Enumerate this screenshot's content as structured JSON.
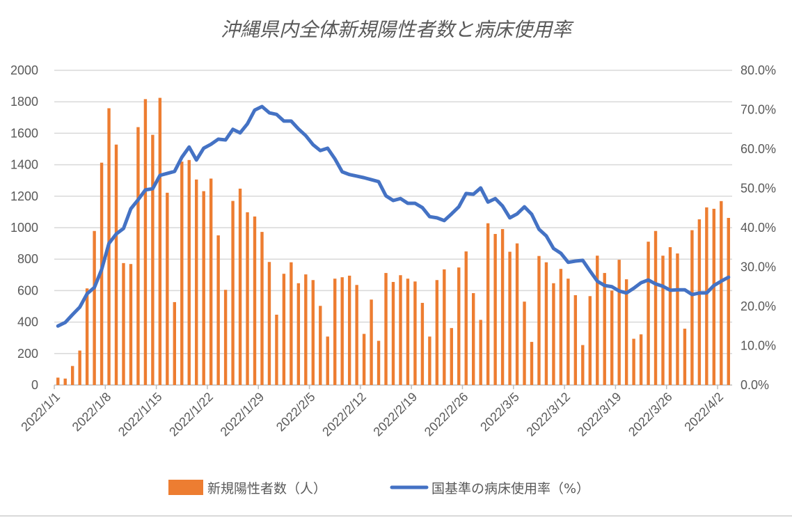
{
  "chart_data": {
    "type": "bar+line",
    "title": "沖縄県内全体新規陽性者数と病床使用率",
    "start_date": "2022/1/1",
    "x_tick_labels": [
      "2022/1/1",
      "2022/1/8",
      "2022/1/15",
      "2022/1/22",
      "2022/1/29",
      "2022/2/5",
      "2022/2/12",
      "2022/2/19",
      "2022/2/26",
      "2022/3/5",
      "2022/3/12",
      "2022/3/19",
      "2022/3/26",
      "2022/4/2"
    ],
    "x_tick_every_days": 7,
    "y_left": {
      "range": [
        0,
        2000
      ],
      "step": 200,
      "tick_labels": [
        "0",
        "200",
        "400",
        "600",
        "800",
        "1000",
        "1200",
        "1400",
        "1600",
        "1800",
        "2000"
      ]
    },
    "y_right": {
      "range": [
        0,
        80
      ],
      "step": 10,
      "tick_labels": [
        "0.0%",
        "10.0%",
        "20.0%",
        "30.0%",
        "40.0%",
        "50.0%",
        "60.0%",
        "70.0%",
        "80.0%"
      ]
    },
    "grid": true,
    "legend_position": "bottom",
    "series": [
      {
        "name": "新規陽性者数（人）",
        "type": "bar",
        "axis": "left",
        "color": "#ED7D31",
        "values": [
          47,
          41,
          121,
          219,
          614,
          979,
          1413,
          1759,
          1528,
          775,
          769,
          1639,
          1817,
          1590,
          1825,
          1222,
          527,
          1420,
          1430,
          1306,
          1232,
          1312,
          951,
          605,
          1170,
          1248,
          1098,
          1071,
          973,
          782,
          447,
          707,
          780,
          647,
          703,
          667,
          503,
          308,
          676,
          685,
          695,
          636,
          325,
          543,
          281,
          712,
          655,
          698,
          676,
          658,
          522,
          308,
          667,
          735,
          362,
          747,
          849,
          584,
          414,
          1028,
          960,
          991,
          847,
          900,
          530,
          274,
          820,
          780,
          647,
          738,
          676,
          571,
          254,
          565,
          822,
          712,
          600,
          796,
          672,
          294,
          322,
          911,
          979,
          822,
          876,
          836,
          358,
          984,
          1053,
          1129,
          1120,
          1169,
          1062
        ]
      },
      {
        "name": "国基準の病床使用率（%）",
        "type": "line",
        "axis": "right",
        "color": "#4472C4",
        "values": [
          15.0,
          15.9,
          17.9,
          19.8,
          23.2,
          24.8,
          29.4,
          36.0,
          38.4,
          39.8,
          44.8,
          47.1,
          49.6,
          49.9,
          53.3,
          53.8,
          54.3,
          57.9,
          60.5,
          57.2,
          60.2,
          61.2,
          62.5,
          62.3,
          65.0,
          64.1,
          66.4,
          69.9,
          70.8,
          69.2,
          68.8,
          67.1,
          67.1,
          65.1,
          63.4,
          61.1,
          59.6,
          60.2,
          57.5,
          54.2,
          53.5,
          53.1,
          52.7,
          52.2,
          51.7,
          48.1,
          46.9,
          47.4,
          46.2,
          46.2,
          45.1,
          42.8,
          42.5,
          41.8,
          43.5,
          45.3,
          48.7,
          48.5,
          50.1,
          46.5,
          47.4,
          45.5,
          42.5,
          43.5,
          45.3,
          43.4,
          39.6,
          37.9,
          34.7,
          33.5,
          31.2,
          31.5,
          31.7,
          29.0,
          26.4,
          25.3,
          25.0,
          23.9,
          23.4,
          24.6,
          26.0,
          26.7,
          25.7,
          25.1,
          24.1,
          24.2,
          24.2,
          23.0,
          23.4,
          23.4,
          25.3,
          26.4,
          27.4
        ]
      }
    ]
  }
}
